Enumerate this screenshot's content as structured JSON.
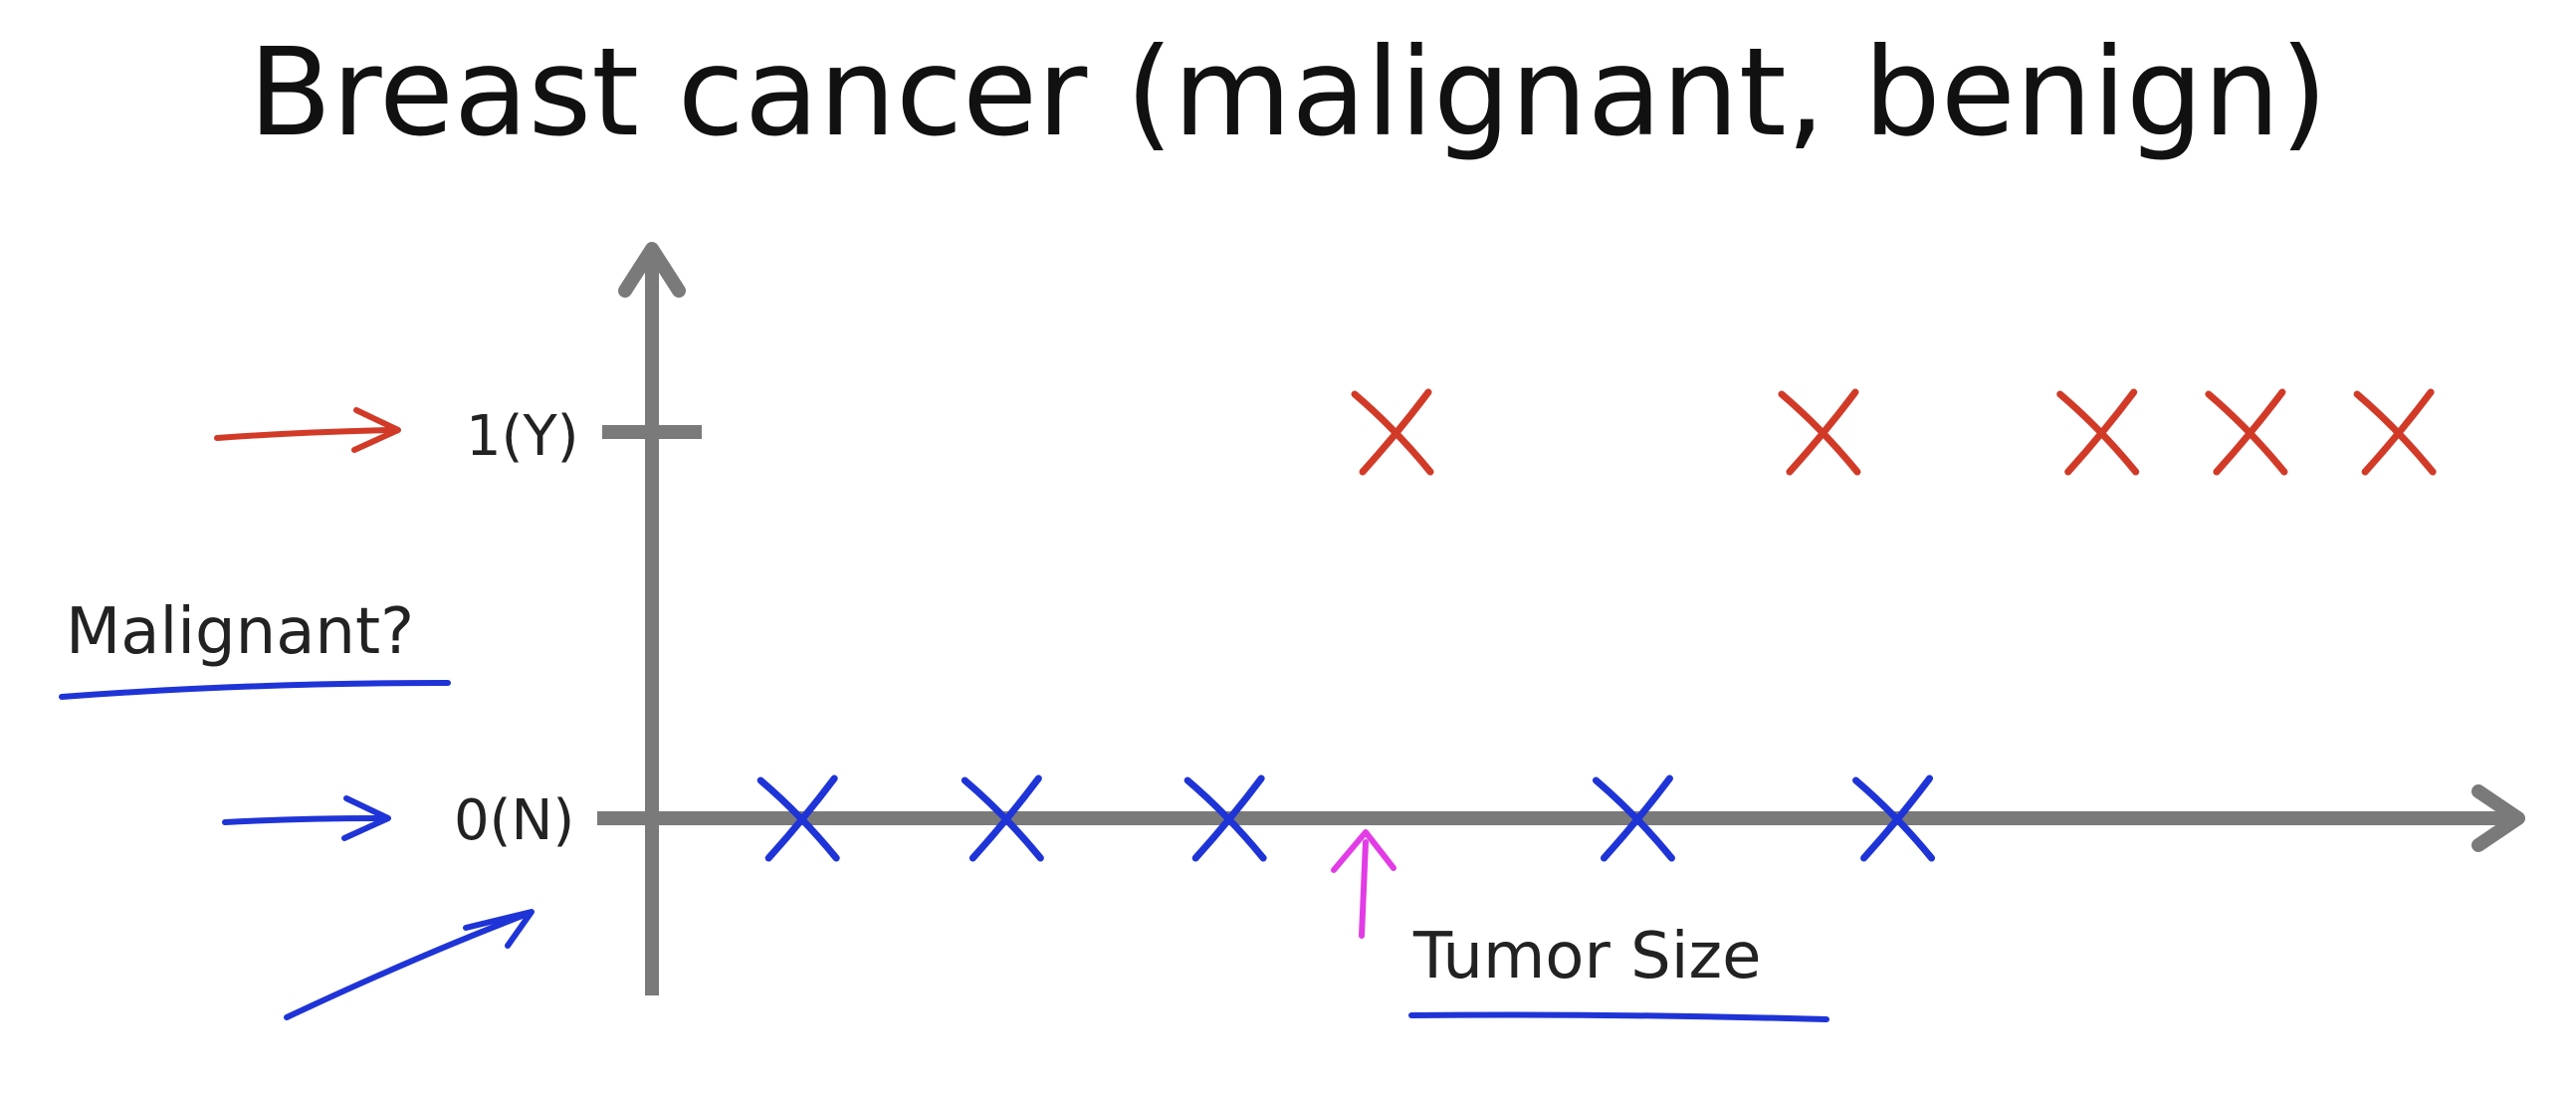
{
  "chart_data": {
    "type": "scatter",
    "title": "Breast cancer (malignant, benign)",
    "xlabel": "Tumor Size",
    "ylabel": "Malignant?",
    "y_ticks": [
      {
        "value": 1,
        "label": "1(Y)"
      },
      {
        "value": 0,
        "label": "0(N)"
      }
    ],
    "xlim": [
      0,
      10
    ],
    "ylim": [
      0,
      1
    ],
    "grid": false,
    "series": [
      {
        "color": "#d23a28",
        "points": [
          {
            "x": 4.0,
            "y": 1
          },
          {
            "x": 6.3,
            "y": 1
          },
          {
            "x": 7.8,
            "y": 1
          },
          {
            "x": 8.6,
            "y": 1
          },
          {
            "x": 9.4,
            "y": 1
          }
        ]
      },
      {
        "color": "#1f34d6",
        "points": [
          {
            "x": 0.8,
            "y": 0
          },
          {
            "x": 1.9,
            "y": 0
          },
          {
            "x": 3.1,
            "y": 0
          },
          {
            "x": 5.3,
            "y": 0
          },
          {
            "x": 6.7,
            "y": 0
          }
        ]
      }
    ]
  },
  "colors": {
    "axis": "#7a7a7a",
    "annotation_red": "#d23a28",
    "annotation_blue": "#1f34d6",
    "annotation_magenta": "#e23ce6"
  }
}
